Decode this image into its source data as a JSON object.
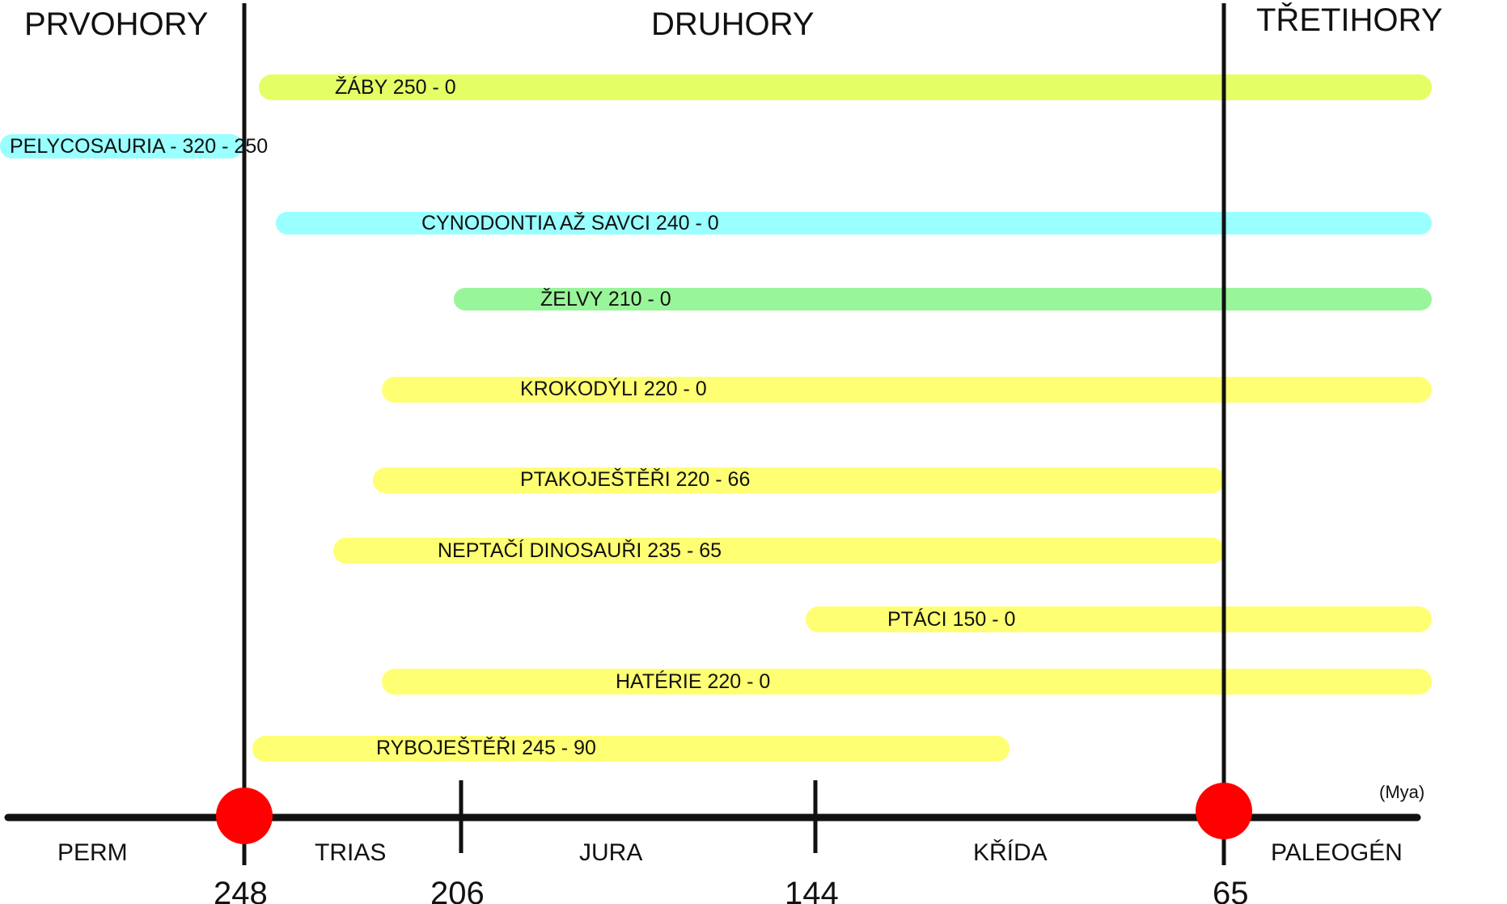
{
  "eras": [
    {
      "id": "prvohory",
      "label": "PRVOHORY"
    },
    {
      "id": "druhory",
      "label": "DRUHORY"
    },
    {
      "id": "tretihory",
      "label": "TŘETIHORY"
    }
  ],
  "periods": [
    {
      "id": "perm",
      "label": "PERM"
    },
    {
      "id": "trias",
      "label": "TRIAS"
    },
    {
      "id": "jura",
      "label": "JURA"
    },
    {
      "id": "krida",
      "label": "KŘÍDA"
    },
    {
      "id": "paleogen",
      "label": "PALEOGÉN"
    }
  ],
  "axis": {
    "unit_label": "(Mya)",
    "ticks": [
      "248",
      "206",
      "144",
      "65"
    ],
    "boundary_markers": [
      "248",
      "65"
    ]
  },
  "colors": {
    "lime": "#e4ff66",
    "cyan": "#99ffff",
    "green": "#99f599",
    "yellow": "#ffff73",
    "line": "#111111",
    "marker": "#ff0000"
  },
  "taxa": [
    {
      "id": "zaby",
      "label": "ŽÁBY 250 - 0",
      "start_mya": 250,
      "end_mya": 0,
      "color": "#e4ff66"
    },
    {
      "id": "pelycosauria",
      "label": "PELYCOSAURIA - 320 - 250",
      "start_mya": 320,
      "end_mya": 250,
      "color": "#99ffff"
    },
    {
      "id": "cynodontia",
      "label": "CYNODONTIA AŽ SAVCI 240 - 0",
      "start_mya": 240,
      "end_mya": 0,
      "color": "#99ffff"
    },
    {
      "id": "zelvy",
      "label": "ŽELVY 210 - 0",
      "start_mya": 210,
      "end_mya": 0,
      "color": "#99f599"
    },
    {
      "id": "krokodyli",
      "label": "KROKODÝLI 220 - 0",
      "start_mya": 220,
      "end_mya": 0,
      "color": "#ffff73"
    },
    {
      "id": "ptakojestri",
      "label": "PTAKOJEŠTĚŘI 220 - 66",
      "start_mya": 220,
      "end_mya": 66,
      "color": "#ffff73"
    },
    {
      "id": "neptaci-dinosauri",
      "label": "NEPTAČÍ DINOSAUŘI 235 - 65",
      "start_mya": 235,
      "end_mya": 65,
      "color": "#ffff73"
    },
    {
      "id": "ptaci",
      "label": "PTÁCI 150 - 0",
      "start_mya": 150,
      "end_mya": 0,
      "color": "#ffff73"
    },
    {
      "id": "haterie",
      "label": "HATÉRIE 220 - 0",
      "start_mya": 220,
      "end_mya": 0,
      "color": "#ffff73"
    },
    {
      "id": "rybojestri",
      "label": "RYBOJEŠTĚŘI  245 - 90",
      "start_mya": 245,
      "end_mya": 90,
      "color": "#ffff73"
    }
  ]
}
